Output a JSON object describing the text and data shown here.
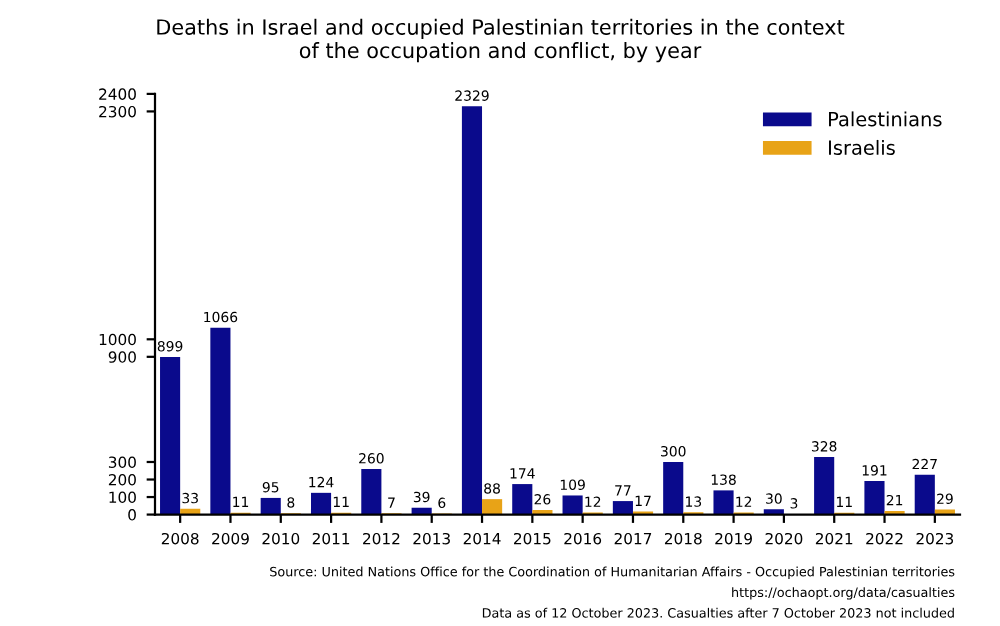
{
  "chart_data": {
    "type": "bar",
    "title": "Deaths in Israel and occupied Palestinian territories in the context\nof the occupation and conflict, by year",
    "categories": [
      "2008",
      "2009",
      "2010",
      "2011",
      "2012",
      "2013",
      "2014",
      "2015",
      "2016",
      "2017",
      "2018",
      "2019",
      "2020",
      "2021",
      "2022",
      "2023"
    ],
    "series": [
      {
        "name": "Palestinians",
        "color": "#0a0a8c",
        "values": [
          899,
          1066,
          95,
          124,
          260,
          39,
          2329,
          174,
          109,
          77,
          300,
          138,
          30,
          328,
          191,
          227
        ]
      },
      {
        "name": "Israelis",
        "color": "#e8a317",
        "values": [
          33,
          11,
          8,
          11,
          7,
          6,
          88,
          26,
          12,
          17,
          13,
          12,
          3,
          11,
          21,
          29
        ]
      }
    ],
    "ylim": [
      0,
      2400
    ],
    "yticks": [
      0,
      100,
      200,
      300,
      900,
      1000,
      2300,
      2400
    ],
    "data_labels": true,
    "grid": false,
    "legend": "top right",
    "annotations": [
      "Source: United Nations Office for the Coordination of Humanitarian Affairs - Occupied Palestinian territories",
      "https://ochaopt.org/data/casualties",
      "Data as of 12 October 2023. Casualties after 7 October 2023 not included"
    ]
  }
}
